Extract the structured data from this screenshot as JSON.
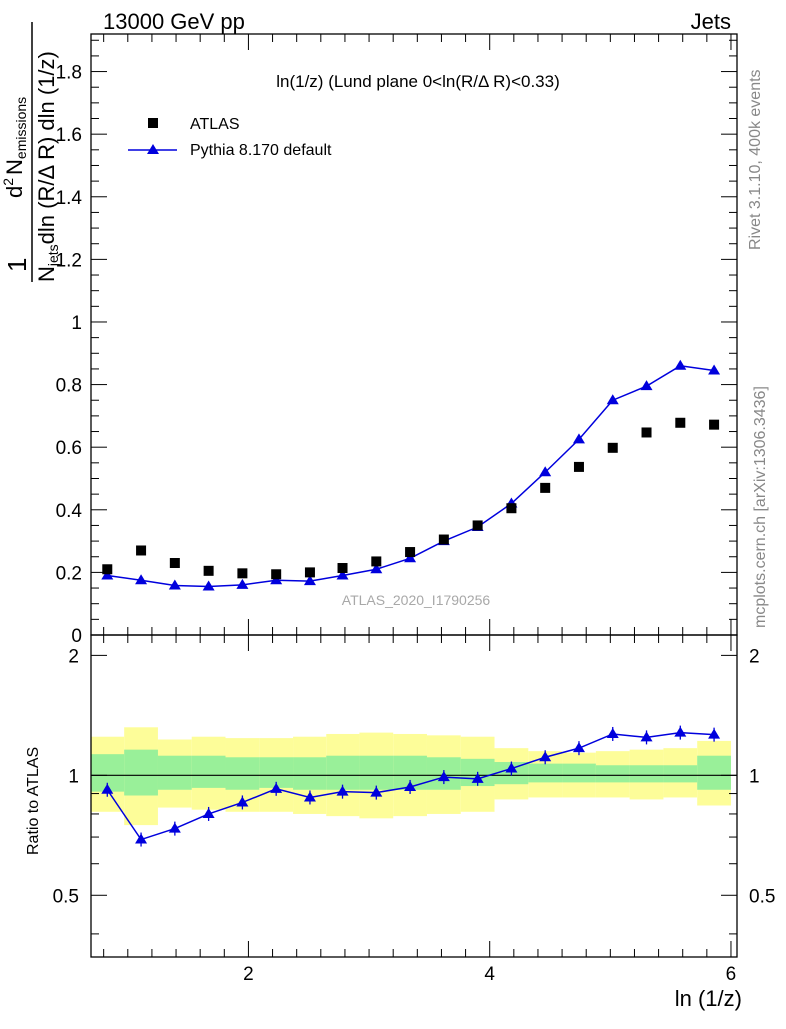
{
  "header": {
    "left": "13000 GeV pp",
    "right": "Jets"
  },
  "side_texts": {
    "rivet": "Rivet 3.1.10,  400k events",
    "mcplots": "mcplots.cern.ch [arXiv:1306.3436]"
  },
  "title": "ln(1/z) (Lund plane 0<ln(R/Δ R)<0.33)",
  "watermark": "ATLAS_2020_I1790256",
  "ylabel_parts": {
    "one": "1",
    "njets": "N",
    "jets_sub": "jets",
    "den_rest": "dln (R/Δ R) dln (1/z)",
    "num_main": "d",
    "num_sup": "2",
    "num_rest": "N",
    "emissions_sub": "emissions"
  },
  "legend": {
    "atlas": "ATLAS",
    "pythia": "Pythia 8.170 default"
  },
  "colors": {
    "pythia": "#0000dd",
    "band_inner": "#99f099",
    "band_outer": "#fdfd99",
    "data": "#000000"
  },
  "chart_data": [
    {
      "type": "scatter",
      "panel": "main",
      "xlabel": "ln (1/z)",
      "xlim": [
        0.695,
        6.05
      ],
      "ylim": [
        0,
        1.92
      ],
      "yticks": [
        0,
        0.2,
        0.4,
        0.6,
        0.8,
        1,
        1.2,
        1.4,
        1.6,
        1.8
      ],
      "ytick_labels": [
        "0",
        "0.2",
        "0.4",
        "0.6",
        "0.8",
        "1",
        "1.2",
        "1.4",
        "1.6",
        "1.8"
      ],
      "x": [
        0.83,
        1.11,
        1.39,
        1.67,
        1.95,
        2.23,
        2.51,
        2.78,
        3.06,
        3.34,
        3.62,
        3.9,
        4.18,
        4.46,
        4.74,
        5.02,
        5.3,
        5.58,
        5.86
      ],
      "series": [
        {
          "name": "ATLAS",
          "marker": "square",
          "values": [
            0.21,
            0.27,
            0.23,
            0.205,
            0.197,
            0.194,
            0.2,
            0.214,
            0.235,
            0.265,
            0.305,
            0.35,
            0.405,
            0.47,
            0.537,
            0.598,
            0.647,
            0.678,
            0.672
          ]
        },
        {
          "name": "Pythia 8.170 default",
          "marker": "triangle",
          "values": [
            0.19,
            0.175,
            0.158,
            0.155,
            0.16,
            0.175,
            0.172,
            0.19,
            0.21,
            0.245,
            0.3,
            0.345,
            0.42,
            0.52,
            0.625,
            0.75,
            0.795,
            0.86,
            0.845
          ]
        }
      ]
    },
    {
      "type": "line",
      "panel": "ratio",
      "ylabel": "Ratio to ATLAS",
      "xlabel": "ln (1/z)",
      "xlim": [
        0.695,
        6.05
      ],
      "ylim": [
        0.35,
        2.25
      ],
      "xticks": [
        2,
        4,
        6
      ],
      "xtick_labels": [
        "2",
        "4",
        "6"
      ],
      "yticks": [
        0.5,
        1,
        2
      ],
      "ytick_labels": [
        "0.5",
        "1",
        "2"
      ],
      "bin_edges": [
        0.695,
        0.97,
        1.25,
        1.53,
        1.81,
        2.09,
        2.37,
        2.645,
        2.92,
        3.2,
        3.48,
        3.76,
        4.04,
        4.32,
        4.6,
        4.88,
        5.16,
        5.44,
        5.72,
        6.0
      ],
      "band_inner": [
        [
          0.91,
          1.13
        ],
        [
          0.89,
          1.16
        ],
        [
          0.92,
          1.12
        ],
        [
          0.93,
          1.12
        ],
        [
          0.92,
          1.11
        ],
        [
          0.93,
          1.11
        ],
        [
          0.92,
          1.11
        ],
        [
          0.92,
          1.12
        ],
        [
          0.92,
          1.12
        ],
        [
          0.92,
          1.12
        ],
        [
          0.92,
          1.11
        ],
        [
          0.94,
          1.1
        ],
        [
          0.95,
          1.08
        ],
        [
          0.96,
          1.07
        ],
        [
          0.96,
          1.07
        ],
        [
          0.96,
          1.06
        ],
        [
          0.96,
          1.06
        ],
        [
          0.96,
          1.06
        ],
        [
          0.92,
          1.12
        ]
      ],
      "band_outer": [
        [
          0.81,
          1.25
        ],
        [
          0.75,
          1.32
        ],
        [
          0.83,
          1.23
        ],
        [
          0.82,
          1.25
        ],
        [
          0.81,
          1.24
        ],
        [
          0.81,
          1.24
        ],
        [
          0.8,
          1.25
        ],
        [
          0.79,
          1.27
        ],
        [
          0.78,
          1.28
        ],
        [
          0.79,
          1.27
        ],
        [
          0.8,
          1.26
        ],
        [
          0.81,
          1.25
        ],
        [
          0.87,
          1.17
        ],
        [
          0.88,
          1.15
        ],
        [
          0.88,
          1.14
        ],
        [
          0.88,
          1.15
        ],
        [
          0.87,
          1.16
        ],
        [
          0.88,
          1.17
        ],
        [
          0.84,
          1.22
        ]
      ],
      "x": [
        0.83,
        1.11,
        1.39,
        1.67,
        1.95,
        2.23,
        2.51,
        2.78,
        3.06,
        3.34,
        3.62,
        3.9,
        4.18,
        4.46,
        4.74,
        5.02,
        5.3,
        5.58,
        5.86
      ],
      "series": [
        {
          "name": "Pythia 8.170 default",
          "values": [
            0.92,
            0.69,
            0.735,
            0.8,
            0.855,
            0.925,
            0.88,
            0.91,
            0.905,
            0.935,
            0.99,
            0.98,
            1.04,
            1.11,
            1.17,
            1.27,
            1.245,
            1.28,
            1.265
          ]
        }
      ]
    }
  ]
}
